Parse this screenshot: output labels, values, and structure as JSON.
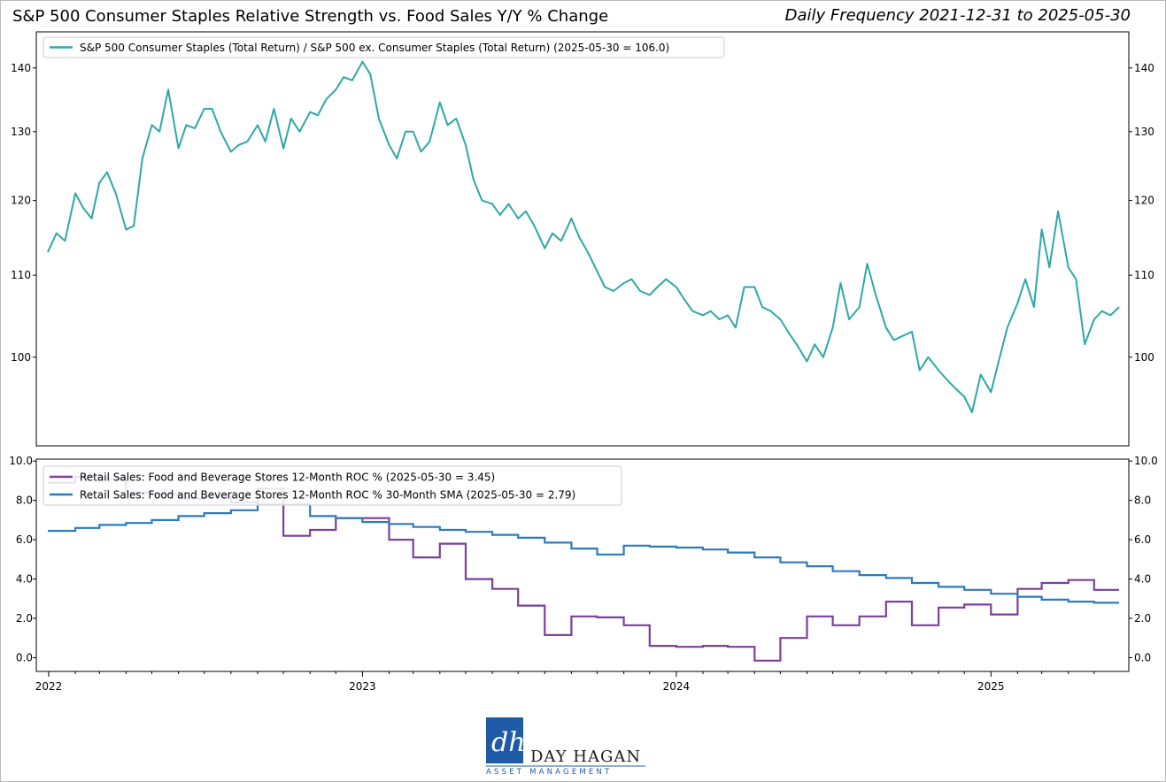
{
  "header": {
    "title": "S&P 500 Consumer Staples Relative Strength vs. Food Sales Y/Y % Change",
    "subtitle": "Daily Frequency 2021-12-31 to 2025-05-30"
  },
  "logo": {
    "company": "DAY HAGAN",
    "tagline": "ASSET MANAGEMENT",
    "monogram": "dh",
    "brand_color": "#1f5aa6"
  },
  "colors": {
    "relative_strength": "#2ea8a5",
    "roc": "#7b3f9e",
    "sma": "#2b7bbd"
  },
  "chart_data": [
    {
      "type": "line",
      "title": "",
      "xlabel": "",
      "ylabel": "",
      "scale": "log",
      "ylim": [
        90.2,
        146
      ],
      "yticks": [
        100,
        110,
        120,
        130,
        140
      ],
      "grid": false,
      "legend_position": "top-left",
      "series": [
        {
          "name": "S&P 500 Consumer Staples (Total Return) / S&P 500 ex. Consumer Staples (Total Return) (2025-05-30 = 106.0)",
          "color": "#2ea8a5",
          "x": [
            "2021-12-31",
            "2022-01-10",
            "2022-01-20",
            "2022-02-01",
            "2022-02-10",
            "2022-02-20",
            "2022-03-01",
            "2022-03-10",
            "2022-03-20",
            "2022-04-01",
            "2022-04-10",
            "2022-04-20",
            "2022-05-01",
            "2022-05-10",
            "2022-05-20",
            "2022-06-01",
            "2022-06-10",
            "2022-06-20",
            "2022-07-01",
            "2022-07-10",
            "2022-07-20",
            "2022-08-01",
            "2022-08-10",
            "2022-08-20",
            "2022-09-01",
            "2022-09-10",
            "2022-09-20",
            "2022-10-01",
            "2022-10-10",
            "2022-10-20",
            "2022-11-01",
            "2022-11-10",
            "2022-11-20",
            "2022-12-01",
            "2022-12-10",
            "2022-12-20",
            "2023-01-01",
            "2023-01-10",
            "2023-01-20",
            "2023-02-01",
            "2023-02-10",
            "2023-02-20",
            "2023-03-01",
            "2023-03-10",
            "2023-03-20",
            "2023-04-01",
            "2023-04-10",
            "2023-04-20",
            "2023-05-01",
            "2023-05-10",
            "2023-05-20",
            "2023-06-01",
            "2023-06-10",
            "2023-06-20",
            "2023-07-01",
            "2023-07-10",
            "2023-07-20",
            "2023-08-01",
            "2023-08-10",
            "2023-08-20",
            "2023-09-01",
            "2023-09-10",
            "2023-09-20",
            "2023-10-01",
            "2023-10-10",
            "2023-10-20",
            "2023-11-01",
            "2023-11-10",
            "2023-11-20",
            "2023-12-01",
            "2023-12-10",
            "2023-12-20",
            "2024-01-01",
            "2024-01-10",
            "2024-01-20",
            "2024-02-01",
            "2024-02-10",
            "2024-02-20",
            "2024-03-01",
            "2024-03-10",
            "2024-03-20",
            "2024-04-01",
            "2024-04-10",
            "2024-04-20",
            "2024-05-01",
            "2024-05-10",
            "2024-05-20",
            "2024-06-01",
            "2024-06-10",
            "2024-06-20",
            "2024-07-01",
            "2024-07-10",
            "2024-07-20",
            "2024-08-01",
            "2024-08-10",
            "2024-08-20",
            "2024-09-01",
            "2024-09-10",
            "2024-09-20",
            "2024-10-01",
            "2024-10-10",
            "2024-10-20",
            "2024-11-01",
            "2024-11-10",
            "2024-11-20",
            "2024-12-01",
            "2024-12-10",
            "2024-12-20",
            "2025-01-01",
            "2025-01-10",
            "2025-01-20",
            "2025-02-01",
            "2025-02-10",
            "2025-02-20",
            "2025-03-01",
            "2025-03-10",
            "2025-03-20",
            "2025-04-01",
            "2025-04-10",
            "2025-04-20",
            "2025-05-01",
            "2025-05-10",
            "2025-05-20",
            "2025-05-30"
          ],
          "values": [
            113.0,
            115.5,
            114.5,
            121.0,
            119.0,
            117.5,
            122.5,
            124.0,
            121.0,
            116.0,
            116.5,
            126.0,
            131.0,
            130.0,
            136.5,
            127.5,
            131.0,
            130.5,
            133.5,
            133.5,
            130.0,
            127.0,
            128.0,
            128.5,
            131.0,
            128.5,
            133.5,
            127.5,
            132.0,
            130.0,
            133.0,
            132.5,
            135.0,
            136.5,
            138.5,
            138.0,
            141.0,
            139.0,
            132.0,
            128.0,
            126.0,
            130.0,
            130.0,
            127.0,
            128.5,
            134.5,
            131.0,
            132.0,
            128.0,
            123.0,
            120.0,
            119.5,
            118.0,
            119.5,
            117.5,
            118.5,
            116.5,
            113.5,
            115.5,
            114.5,
            117.5,
            115.0,
            113.0,
            110.5,
            108.5,
            108.0,
            109.0,
            109.5,
            108.0,
            107.5,
            108.5,
            109.5,
            108.5,
            107.0,
            105.5,
            105.0,
            105.5,
            104.5,
            105.0,
            103.5,
            108.5,
            108.5,
            106.0,
            105.5,
            104.5,
            103.0,
            101.5,
            99.5,
            101.5,
            100.0,
            103.5,
            109.0,
            104.5,
            106.0,
            111.5,
            107.5,
            103.5,
            102.0,
            102.5,
            103.0,
            98.5,
            100.0,
            98.5,
            97.5,
            96.5,
            95.5,
            93.8,
            98.0,
            96.0,
            99.5,
            103.5,
            106.5,
            109.5,
            106.0,
            116.0,
            111.0,
            118.5,
            111.0,
            109.5,
            101.5,
            104.5,
            105.5,
            105.0,
            106.0
          ]
        }
      ]
    },
    {
      "type": "line",
      "title": "",
      "xlabel": "",
      "ylabel": "",
      "ylim": [
        -0.7,
        10.1
      ],
      "yticks": [
        0.0,
        2.0,
        4.0,
        6.0,
        8.0,
        10.0
      ],
      "xticks": [
        "2022",
        "2023",
        "2024",
        "2025"
      ],
      "grid": false,
      "legend_position": "top-left",
      "series": [
        {
          "name": "Retail Sales: Food and Beverage Stores 12-Month ROC % (2025-05-30 = 3.45)",
          "color": "#7b3f9e",
          "step": true,
          "x": [
            "2021-12-31",
            "2022-02-01",
            "2022-03-01",
            "2022-04-01",
            "2022-05-01",
            "2022-06-01",
            "2022-07-01",
            "2022-08-01",
            "2022-09-01",
            "2022-10-01",
            "2022-11-01",
            "2022-12-01",
            "2023-01-01",
            "2023-02-01",
            "2023-03-01",
            "2023-04-01",
            "2023-05-01",
            "2023-06-01",
            "2023-07-01",
            "2023-08-01",
            "2023-09-01",
            "2023-10-01",
            "2023-11-01",
            "2023-12-01",
            "2024-01-01",
            "2024-02-01",
            "2024-03-01",
            "2024-04-01",
            "2024-05-01",
            "2024-06-01",
            "2024-07-01",
            "2024-08-01",
            "2024-09-01",
            "2024-10-01",
            "2024-11-01",
            "2024-12-01",
            "2025-01-01",
            "2025-02-01",
            "2025-03-01",
            "2025-04-01",
            "2025-05-01",
            "2025-05-30"
          ],
          "values": [
            8.9,
            9.2,
            9.1,
            8.4,
            8.3,
            8.1,
            8.2,
            7.9,
            8.6,
            6.2,
            6.5,
            7.1,
            7.1,
            6.0,
            5.1,
            5.8,
            4.0,
            3.5,
            2.65,
            1.15,
            2.1,
            2.05,
            1.65,
            0.6,
            0.55,
            0.6,
            0.55,
            -0.15,
            1.0,
            2.1,
            1.65,
            2.1,
            2.85,
            1.65,
            2.55,
            2.7,
            2.2,
            3.5,
            3.8,
            3.95,
            3.45,
            3.45
          ]
        },
        {
          "name": "Retail Sales: Food and Beverage Stores 12-Month ROC % 30-Month SMA (2025-05-30 = 2.79)",
          "color": "#2b7bbd",
          "step": true,
          "x": [
            "2021-12-31",
            "2022-02-01",
            "2022-03-01",
            "2022-04-01",
            "2022-05-01",
            "2022-06-01",
            "2022-07-01",
            "2022-08-01",
            "2022-09-01",
            "2022-10-01",
            "2022-11-01",
            "2022-12-01",
            "2023-01-01",
            "2023-02-01",
            "2023-03-01",
            "2023-04-01",
            "2023-05-01",
            "2023-06-01",
            "2023-07-01",
            "2023-08-01",
            "2023-09-01",
            "2023-10-01",
            "2023-11-01",
            "2023-12-01",
            "2024-01-01",
            "2024-02-01",
            "2024-03-01",
            "2024-04-01",
            "2024-05-01",
            "2024-06-01",
            "2024-07-01",
            "2024-08-01",
            "2024-09-01",
            "2024-10-01",
            "2024-11-01",
            "2024-12-01",
            "2025-01-01",
            "2025-02-01",
            "2025-03-01",
            "2025-04-01",
            "2025-05-01",
            "2025-05-30"
          ],
          "values": [
            6.45,
            6.6,
            6.75,
            6.85,
            7.0,
            7.2,
            7.35,
            7.5,
            7.8,
            7.8,
            7.2,
            7.1,
            6.9,
            6.8,
            6.65,
            6.5,
            6.4,
            6.25,
            6.1,
            5.85,
            5.55,
            5.25,
            5.7,
            5.65,
            5.6,
            5.5,
            5.35,
            5.1,
            4.85,
            4.65,
            4.4,
            4.2,
            4.05,
            3.8,
            3.6,
            3.45,
            3.25,
            3.1,
            2.95,
            2.85,
            2.79,
            2.79
          ]
        }
      ]
    }
  ]
}
